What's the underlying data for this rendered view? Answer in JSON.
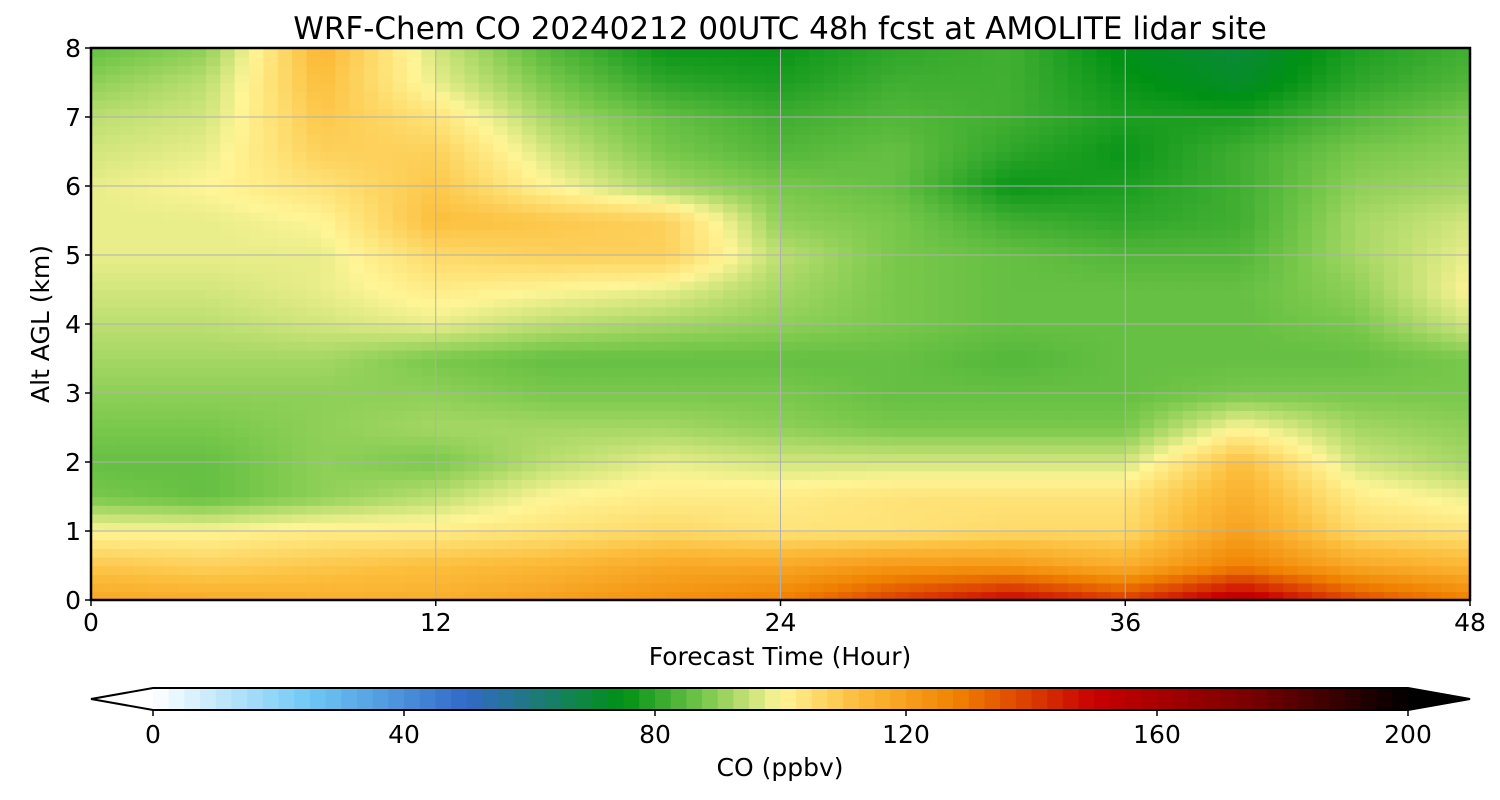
{
  "chart_data": {
    "type": "heatmap",
    "title": "WRF-Chem CO  20240212 00UTC 48h fcst at AMOLITE lidar site",
    "xlabel": "Forecast Time (Hour)",
    "ylabel": "Alt AGL (km)",
    "xlim": [
      0,
      48
    ],
    "ylim": [
      0,
      8
    ],
    "x_ticks": [
      0,
      12,
      24,
      36,
      48
    ],
    "y_ticks": [
      0,
      1,
      2,
      3,
      4,
      5,
      6,
      7,
      8
    ],
    "grid": true,
    "x": [
      0,
      4,
      8,
      12,
      16,
      20,
      24,
      28,
      32,
      36,
      40,
      44,
      48
    ],
    "y": [
      0,
      0.5,
      1,
      1.5,
      2,
      2.5,
      3,
      3.5,
      4,
      4.5,
      5,
      5.5,
      6,
      6.5,
      7,
      7.5,
      8
    ],
    "z": [
      [
        118,
        117,
        116,
        116,
        120,
        124,
        128,
        140,
        150,
        140,
        156,
        138,
        128
      ],
      [
        110,
        108,
        110,
        112,
        114,
        118,
        118,
        122,
        122,
        116,
        128,
        118,
        114
      ],
      [
        100,
        100,
        102,
        102,
        104,
        106,
        104,
        104,
        106,
        106,
        120,
        106,
        104
      ],
      [
        88,
        86,
        90,
        94,
        100,
        102,
        102,
        104,
        104,
        104,
        116,
        102,
        98
      ],
      [
        86,
        86,
        90,
        88,
        94,
        98,
        96,
        96,
        96,
        96,
        112,
        96,
        92
      ],
      [
        88,
        88,
        90,
        92,
        92,
        92,
        90,
        88,
        88,
        88,
        100,
        92,
        90
      ],
      [
        90,
        90,
        90,
        90,
        88,
        88,
        88,
        86,
        86,
        86,
        88,
        88,
        88
      ],
      [
        92,
        92,
        92,
        88,
        86,
        86,
        86,
        86,
        84,
        86,
        86,
        86,
        88
      ],
      [
        94,
        94,
        96,
        98,
        94,
        92,
        90,
        88,
        86,
        86,
        86,
        88,
        96
      ],
      [
        96,
        96,
        98,
        102,
        100,
        98,
        92,
        88,
        86,
        86,
        86,
        90,
        100
      ],
      [
        98,
        98,
        98,
        106,
        108,
        108,
        94,
        88,
        86,
        84,
        84,
        92,
        98
      ],
      [
        98,
        98,
        100,
        112,
        110,
        108,
        90,
        88,
        82,
        80,
        82,
        92,
        96
      ],
      [
        98,
        100,
        104,
        110,
        100,
        92,
        88,
        86,
        76,
        78,
        82,
        90,
        92
      ],
      [
        96,
        98,
        108,
        108,
        96,
        88,
        84,
        86,
        80,
        76,
        82,
        88,
        90
      ],
      [
        94,
        96,
        110,
        104,
        92,
        86,
        82,
        84,
        82,
        78,
        78,
        84,
        88
      ],
      [
        90,
        94,
        112,
        98,
        88,
        80,
        78,
        82,
        82,
        76,
        72,
        80,
        84
      ],
      [
        86,
        90,
        114,
        96,
        84,
        76,
        76,
        80,
        82,
        74,
        70,
        78,
        82
      ]
    ],
    "colorbar": {
      "label": "CO  (ppbv)",
      "min": 0,
      "max": 200,
      "ticks": [
        0,
        40,
        80,
        120,
        160,
        200
      ],
      "extend": "both",
      "orientation": "horizontal"
    }
  }
}
